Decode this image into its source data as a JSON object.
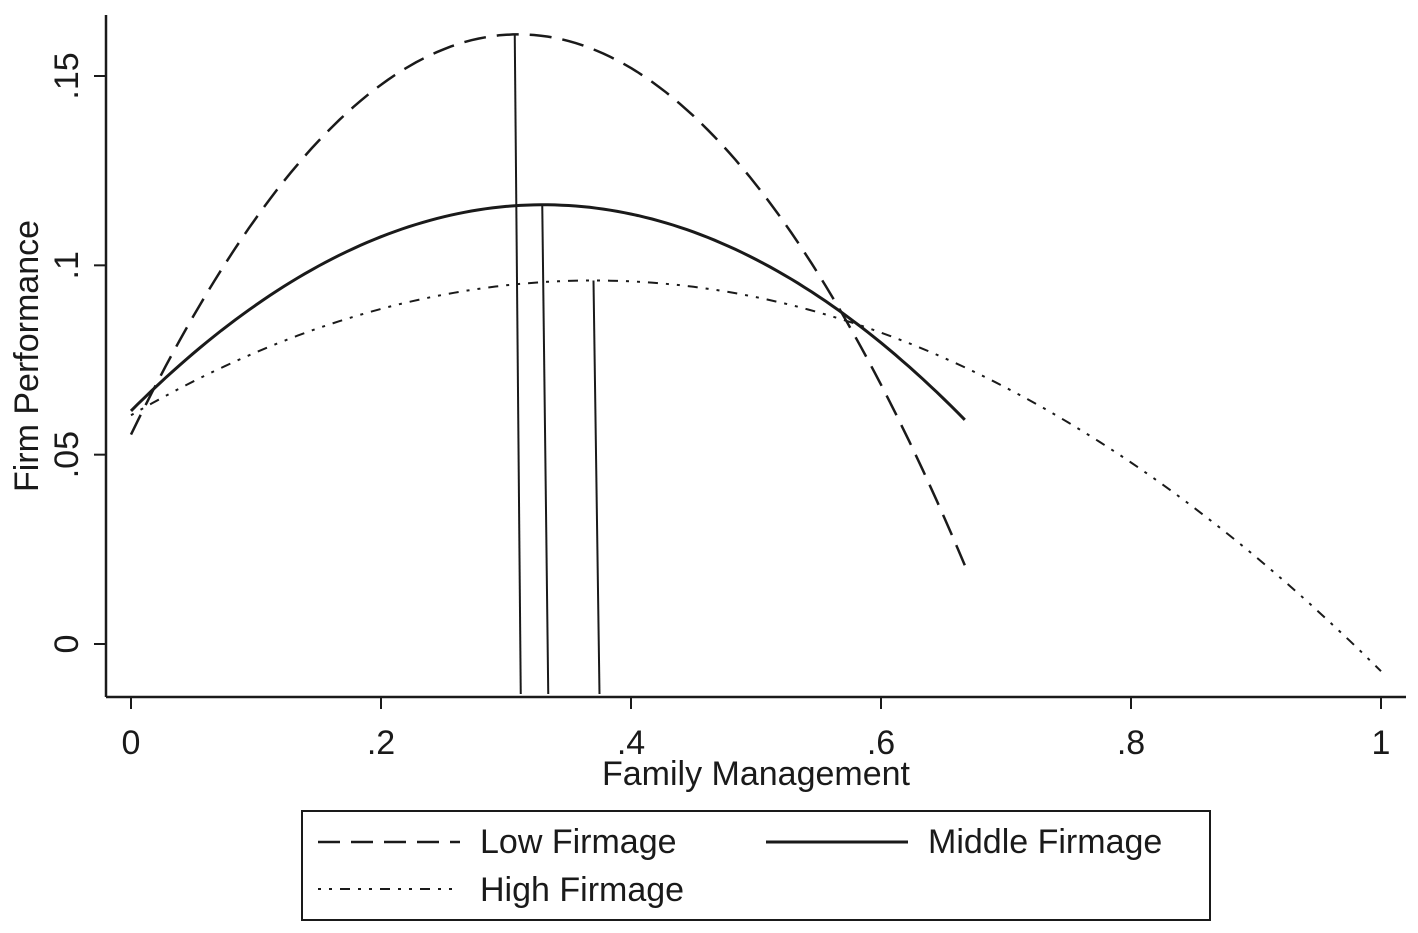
{
  "chart_data": {
    "type": "line",
    "xlabel": "Family Management",
    "ylabel": "Firm Performance",
    "xlim": [
      0,
      1
    ],
    "ylim": [
      -0.014,
      0.166
    ],
    "x_ticks": [
      {
        "value": 0,
        "label": "0"
      },
      {
        "value": 0.2,
        "label": ".2"
      },
      {
        "value": 0.4,
        "label": ".4"
      },
      {
        "value": 0.6,
        "label": ".6"
      },
      {
        "value": 0.8,
        "label": ".8"
      },
      {
        "value": 1,
        "label": "1"
      }
    ],
    "y_ticks": [
      {
        "value": 0,
        "label": "0"
      },
      {
        "value": 0.05,
        "label": ".05"
      },
      {
        "value": 0.1,
        "label": ".1"
      },
      {
        "value": 0.15,
        "label": ".15"
      }
    ],
    "grid": false,
    "legend_position": "bottom",
    "series": [
      {
        "name": "Low Firmage",
        "style": "dashed",
        "x_range": [
          0,
          0.667
        ],
        "vertex_x": 0.31,
        "vertex_y": 0.161,
        "curvature": -1.1,
        "turning_point_x": 0.307
      },
      {
        "name": "Middle Firmage",
        "style": "solid",
        "x_range": [
          0,
          0.667
        ],
        "vertex_x": 0.33,
        "vertex_y": 0.116,
        "curvature": -0.5,
        "turning_point_x": 0.329
      },
      {
        "name": "High Firmage",
        "style": "dash-dot",
        "x_range": [
          0,
          1
        ],
        "vertex_x": 0.37,
        "vertex_y": 0.096,
        "curvature": -0.26,
        "turning_point_x": 0.37
      }
    ]
  }
}
